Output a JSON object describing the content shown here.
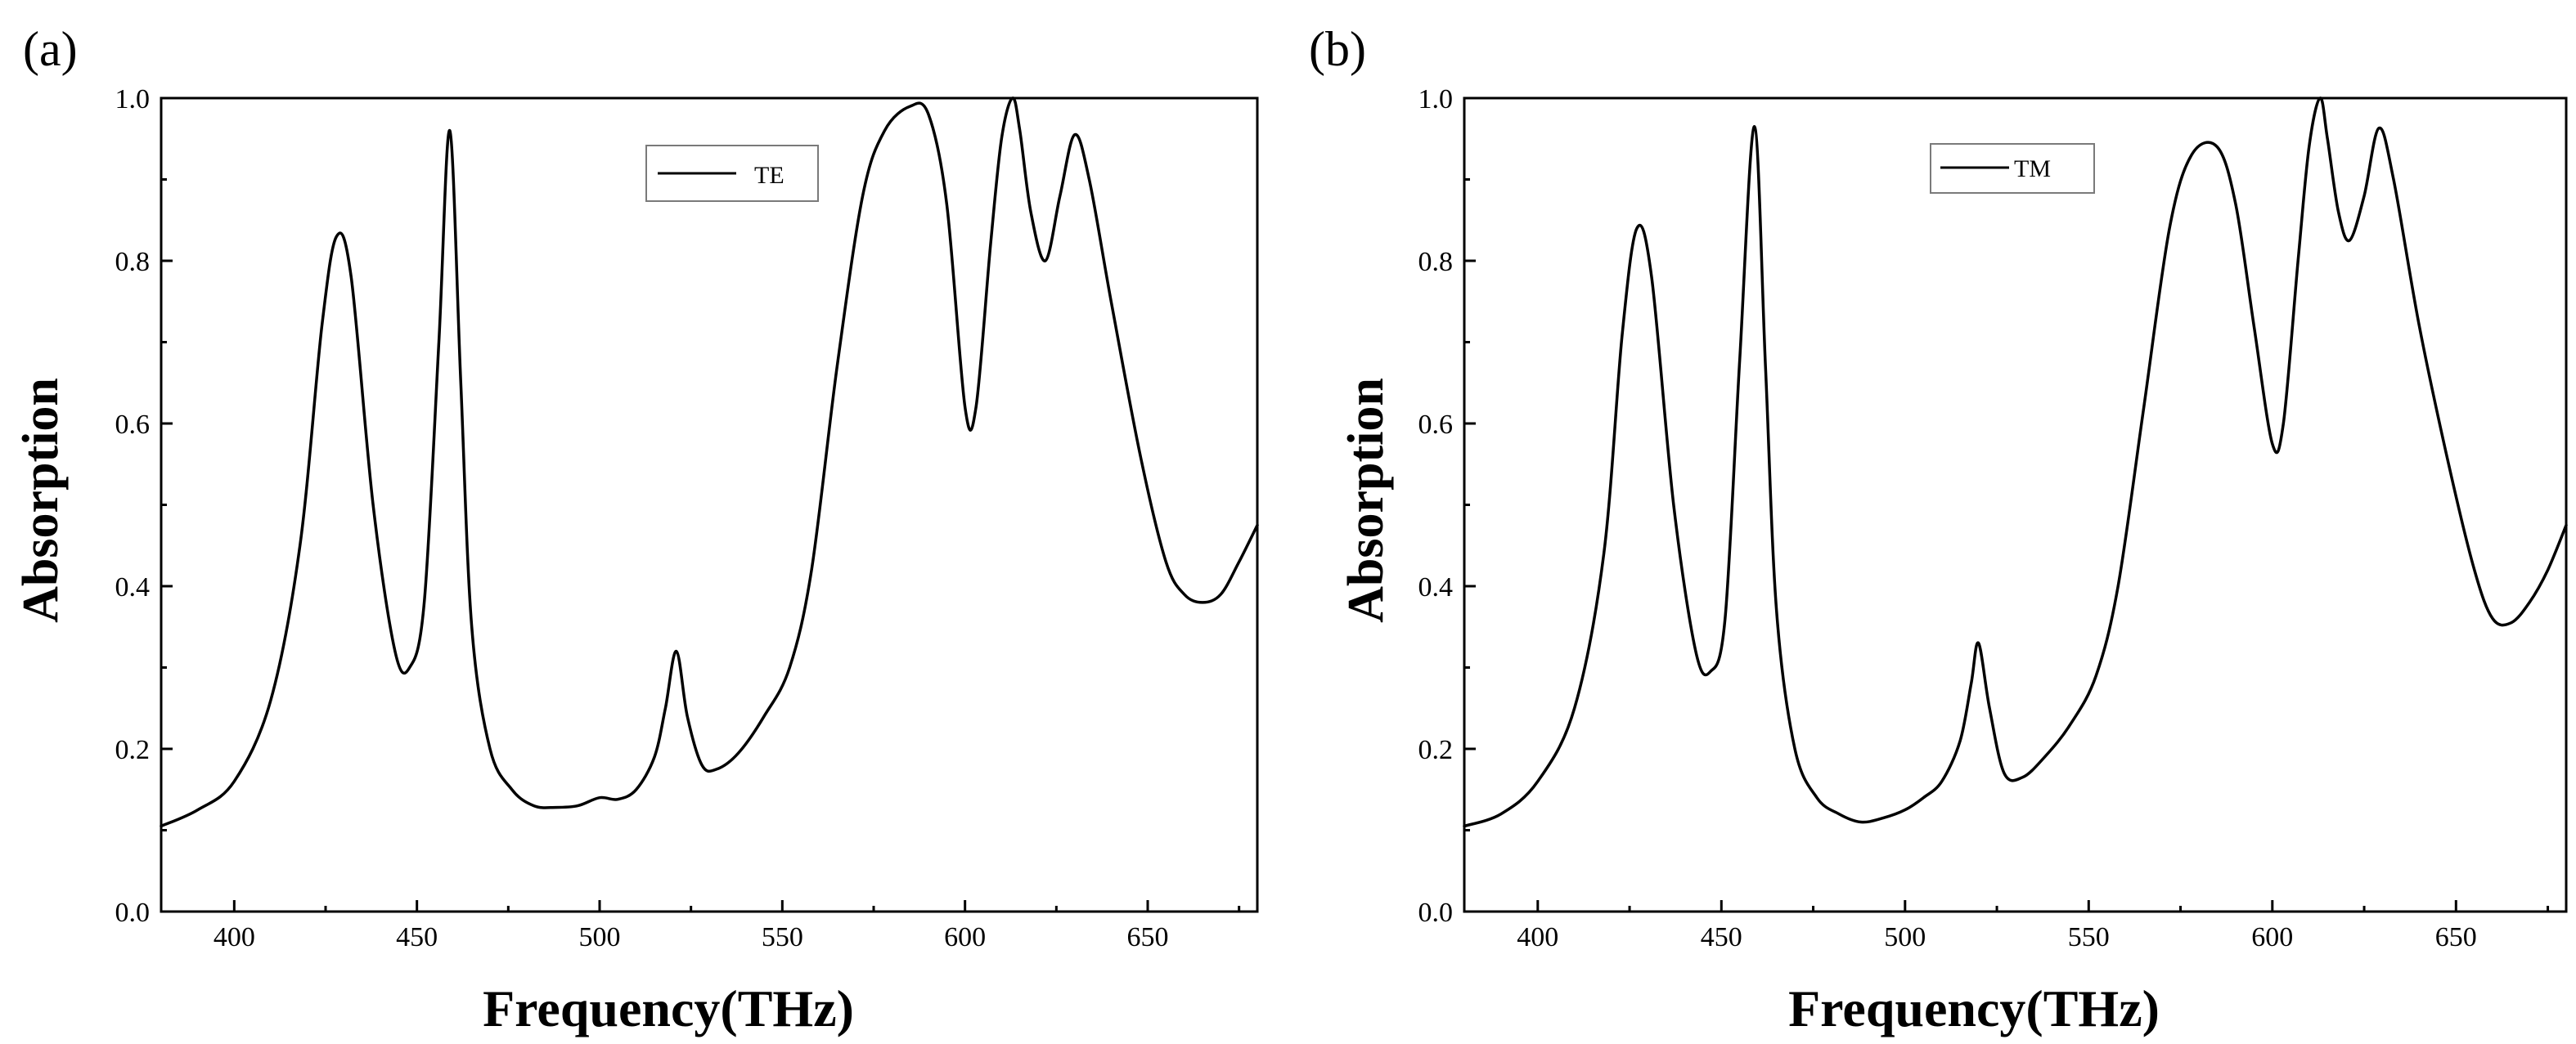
{
  "chart_data": [
    {
      "type": "line",
      "panel_label": "(a)",
      "xlabel": "Frequency(THz)",
      "ylabel": "Absorption",
      "xlim": [
        380,
        680
      ],
      "ylim": [
        0,
        1
      ],
      "x_ticks": [
        400,
        450,
        500,
        550,
        600,
        650
      ],
      "y_ticks": [
        0.0,
        0.2,
        0.4,
        0.6,
        0.8,
        1.0
      ],
      "x_tick_labels": [
        "400",
        "450",
        "500",
        "550",
        "600",
        "650"
      ],
      "y_tick_labels": [
        "0.0",
        "0.2",
        "0.4",
        "0.6",
        "0.8",
        "1.0"
      ],
      "legend_position": "top-center",
      "series": [
        {
          "name": "TE",
          "x": [
            380,
            390,
            400,
            410,
            418,
            424,
            428,
            432,
            438,
            444,
            448,
            452,
            456,
            459,
            462,
            465,
            470,
            476,
            482,
            488,
            494,
            500,
            505,
            510,
            515,
            518,
            521,
            524,
            528,
            532,
            538,
            545,
            552,
            558,
            565,
            572,
            578,
            585,
            590,
            595,
            600,
            603,
            607,
            610,
            613,
            615,
            618,
            622,
            626,
            630,
            634,
            640,
            648,
            655,
            660,
            665,
            670,
            675,
            680
          ],
          "y": [
            0.105,
            0.125,
            0.16,
            0.26,
            0.45,
            0.72,
            0.83,
            0.78,
            0.5,
            0.32,
            0.3,
            0.38,
            0.7,
            0.96,
            0.65,
            0.35,
            0.2,
            0.15,
            0.13,
            0.128,
            0.13,
            0.14,
            0.138,
            0.15,
            0.19,
            0.25,
            0.32,
            0.24,
            0.18,
            0.175,
            0.195,
            0.24,
            0.3,
            0.42,
            0.67,
            0.88,
            0.96,
            0.99,
            0.98,
            0.87,
            0.62,
            0.62,
            0.82,
            0.95,
            1.0,
            0.96,
            0.86,
            0.8,
            0.88,
            0.955,
            0.9,
            0.75,
            0.56,
            0.43,
            0.39,
            0.38,
            0.39,
            0.43,
            0.475
          ]
        }
      ]
    },
    {
      "type": "line",
      "panel_label": "(b)",
      "xlabel": "Frequency(THz)",
      "ylabel": "Absorption",
      "xlim": [
        380,
        680
      ],
      "ylim": [
        0,
        1
      ],
      "x_ticks": [
        400,
        450,
        500,
        550,
        600,
        650
      ],
      "y_ticks": [
        0.0,
        0.2,
        0.4,
        0.6,
        0.8,
        1.0
      ],
      "x_tick_labels": [
        "400",
        "450",
        "500",
        "550",
        "600",
        "650"
      ],
      "y_tick_labels": [
        "0.0",
        "0.2",
        "0.4",
        "0.6",
        "0.8",
        "1.0"
      ],
      "legend_position": "top-center",
      "series": [
        {
          "name": "TM",
          "x": [
            380,
            390,
            400,
            410,
            418,
            423,
            427,
            431,
            437,
            443,
            447,
            451,
            455,
            459,
            462,
            465,
            470,
            476,
            482,
            488,
            494,
            500,
            505,
            510,
            515,
            518,
            520,
            523,
            527,
            532,
            538,
            545,
            552,
            558,
            565,
            572,
            578,
            585,
            590,
            595,
            600,
            603,
            607,
            610,
            613,
            615,
            618,
            621,
            625,
            629,
            633,
            640,
            648,
            655,
            660,
            665,
            670,
            675,
            680
          ],
          "y": [
            0.105,
            0.12,
            0.16,
            0.25,
            0.44,
            0.71,
            0.84,
            0.78,
            0.5,
            0.32,
            0.295,
            0.36,
            0.68,
            0.965,
            0.67,
            0.37,
            0.2,
            0.14,
            0.12,
            0.11,
            0.115,
            0.125,
            0.14,
            0.16,
            0.21,
            0.28,
            0.33,
            0.25,
            0.17,
            0.165,
            0.19,
            0.23,
            0.29,
            0.4,
            0.62,
            0.84,
            0.93,
            0.94,
            0.87,
            0.72,
            0.575,
            0.6,
            0.8,
            0.94,
            1.0,
            0.95,
            0.86,
            0.825,
            0.88,
            0.963,
            0.9,
            0.72,
            0.55,
            0.42,
            0.36,
            0.355,
            0.38,
            0.42,
            0.475
          ]
        }
      ]
    }
  ]
}
